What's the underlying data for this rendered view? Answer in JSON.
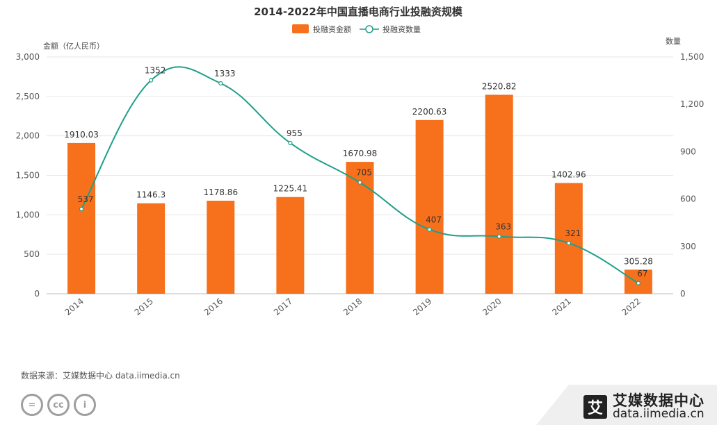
{
  "chart_data": {
    "type": "bar+line",
    "title": "2014-2022年中国直播电商行业投融资规模",
    "categories": [
      "2014",
      "2015",
      "2016",
      "2017",
      "2018",
      "2019",
      "2020",
      "2021",
      "2022"
    ],
    "series": [
      {
        "name": "投融资金额",
        "type": "bar",
        "axis": "left",
        "color": "#f7711c",
        "values": [
          1910.03,
          1146.3,
          1178.86,
          1225.41,
          1670.98,
          2200.63,
          2520.82,
          1402.96,
          305.28
        ]
      },
      {
        "name": "投融资数量",
        "type": "line",
        "axis": "right",
        "color": "#1f9e8a",
        "values": [
          537,
          1352,
          1333,
          955,
          705,
          407,
          363,
          321,
          67
        ]
      }
    ],
    "y_left": {
      "label": "金额（亿人民币）",
      "ylim": [
        0,
        3000
      ],
      "ticks": [
        "3,000",
        "2,500",
        "2,000",
        "1,500",
        "1,000",
        "500",
        "0"
      ]
    },
    "y_right": {
      "label": "数量",
      "ylim": [
        0,
        1500
      ],
      "ticks": [
        "1,500",
        "1,200",
        "900",
        "600",
        "300",
        "0"
      ]
    },
    "grid": true,
    "legend": "top-center"
  },
  "footer": {
    "source": "数据来源：艾媒数据中心 data.iimedia.cn",
    "brand_name": "艾媒数据中心",
    "brand_url": "data.iimedia.cn",
    "brand_logo": "艾"
  },
  "license_icons": [
    "=",
    "cc",
    "i"
  ]
}
